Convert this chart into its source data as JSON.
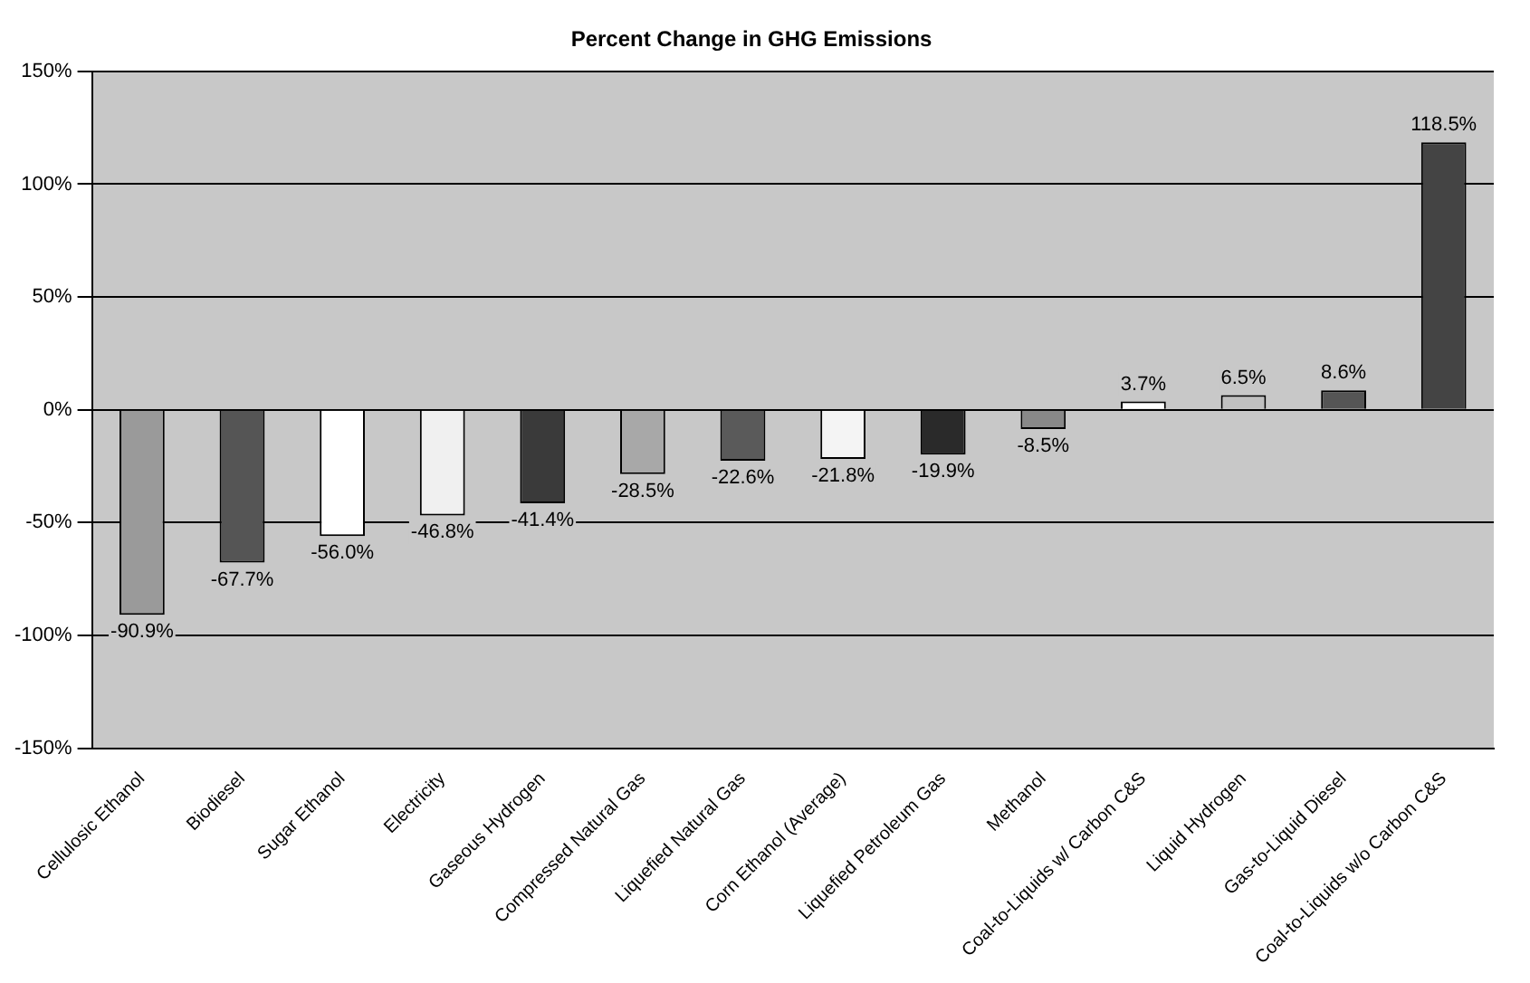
{
  "chart_data": {
    "type": "bar",
    "title": "Percent Change in GHG Emissions",
    "categories": [
      "Cellulosic Ethanol",
      "Biodiesel",
      "Sugar Ethanol",
      "Electricity",
      "Gaseous Hydrogen",
      "Compressed Natural Gas",
      "Liquefied Natural Gas",
      "Corn Ethanol (Average)",
      "Liquefied Petroleum Gas",
      "Methanol",
      "Coal-to-Liquids w/ Carbon C&S",
      "Liquid Hydrogen",
      "Gas-to-Liquid Diesel",
      "Coal-to-Liquids w/o Carbon C&S"
    ],
    "values": [
      -90.9,
      -67.7,
      -56.0,
      -46.8,
      -41.4,
      -28.5,
      -22.6,
      -21.8,
      -19.9,
      -8.5,
      3.7,
      6.5,
      8.6,
      118.5
    ],
    "colors": [
      "#9a9a9a",
      "#555555",
      "#ffffff",
      "#f0f0f0",
      "#3a3a3a",
      "#a8a8a8",
      "#5a5a5a",
      "#f4f4f4",
      "#2a2a2a",
      "#888888",
      "#ffffff",
      "#c0c0c0",
      "#555555",
      "#444444"
    ],
    "value_labels": [
      "-90.9%",
      "-67.7%",
      "-56.0%",
      "-46.8%",
      "-41.4%",
      "-28.5%",
      "-22.6%",
      "-21.8%",
      "-19.9%",
      "-8.5%",
      "3.7%",
      "6.5%",
      "8.6%",
      "118.5%"
    ],
    "ylim": [
      -150,
      150
    ],
    "yticks": [
      {
        "value": -150,
        "label": "-150%"
      },
      {
        "value": -100,
        "label": "-100%"
      },
      {
        "value": -50,
        "label": "-50%"
      },
      {
        "value": 0,
        "label": "0%"
      },
      {
        "value": 50,
        "label": "50%"
      },
      {
        "value": 100,
        "label": "100%"
      },
      {
        "value": 150,
        "label": "150%"
      }
    ],
    "grid": "y",
    "legend": false
  }
}
